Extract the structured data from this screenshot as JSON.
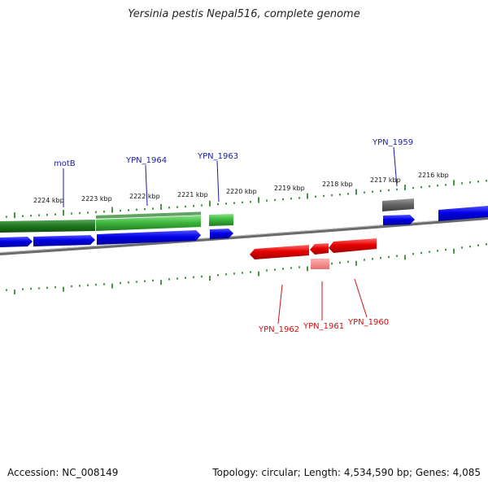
{
  "title": "Yersinia pestis Nepal516, complete genome",
  "footer": {
    "accession": "Accession: NC_008149",
    "stats": "Topology: circular; Length: 4,534,590 bp; Genes: 4,085"
  },
  "scale_labels": [
    "2224 kbp",
    "2223 kbp",
    "2222 kbp",
    "2221 kbp",
    "2220 kbp",
    "2219 kbp",
    "2218 kbp",
    "2217 kbp",
    "2216 kbp"
  ],
  "gene_labels": {
    "top": [
      "motB",
      "YPN_1964",
      "YPN_1963",
      "YPN_1959"
    ],
    "bottom": [
      "YPN_1962",
      "YPN_1961",
      "YPN_1960"
    ]
  },
  "colors": {
    "green_dark": "#1f7a1f",
    "green_light": "#3cb83c",
    "blue": "#0000e6",
    "red": "#e60000",
    "gray": "#6f6f6f",
    "tick_green": "#1a7a1a"
  }
}
